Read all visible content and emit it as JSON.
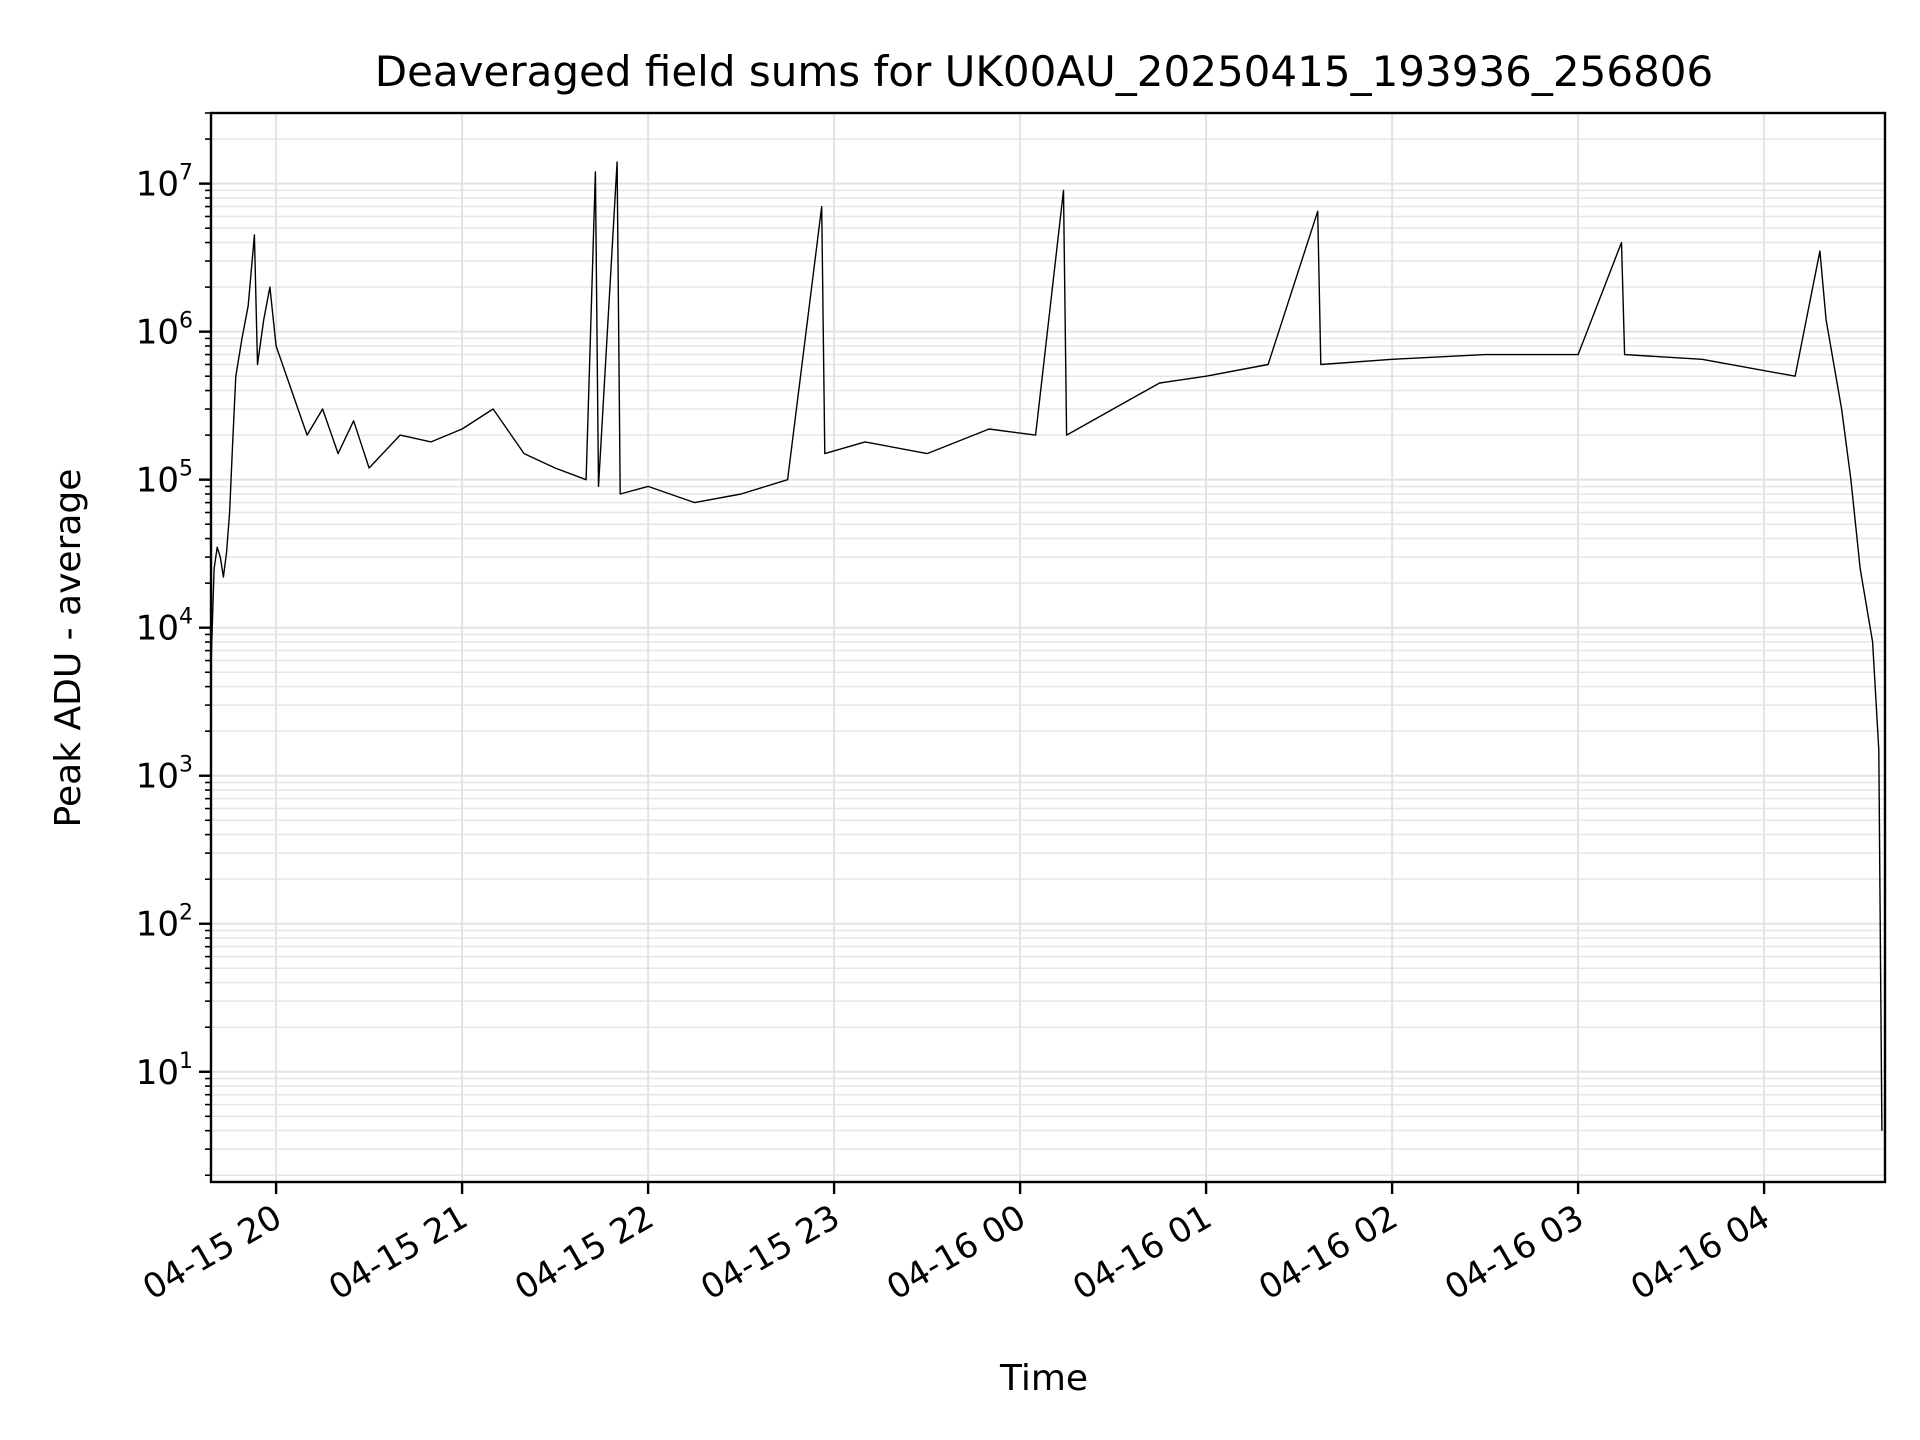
{
  "chart_data": {
    "type": "line",
    "title": "Deaveraged field sums for UK00AU_20250415_193936_256806",
    "xlabel": "Time",
    "ylabel": "Peak ADU - average",
    "yscale": "log",
    "ylim": [
      1.8,
      30000000
    ],
    "xlim": [
      "2025-04-15 19:39",
      "2025-04-16 04:39"
    ],
    "grid": true,
    "x_ticks": [
      {
        "label": "04-15 20",
        "t": "2025-04-15 20:00"
      },
      {
        "label": "04-15 21",
        "t": "2025-04-15 21:00"
      },
      {
        "label": "04-15 22",
        "t": "2025-04-15 22:00"
      },
      {
        "label": "04-15 23",
        "t": "2025-04-15 23:00"
      },
      {
        "label": "04-16 00",
        "t": "2025-04-16 00:00"
      },
      {
        "label": "04-16 01",
        "t": "2025-04-16 01:00"
      },
      {
        "label": "04-16 02",
        "t": "2025-04-16 02:00"
      },
      {
        "label": "04-16 03",
        "t": "2025-04-16 03:00"
      },
      {
        "label": "04-16 04",
        "t": "2025-04-16 04:00"
      }
    ],
    "y_ticks": [
      {
        "base": "10",
        "exp": "1",
        "value": 10
      },
      {
        "base": "10",
        "exp": "2",
        "value": 100
      },
      {
        "base": "10",
        "exp": "3",
        "value": 1000
      },
      {
        "base": "10",
        "exp": "4",
        "value": 10000
      },
      {
        "base": "10",
        "exp": "5",
        "value": 100000
      },
      {
        "base": "10",
        "exp": "6",
        "value": 1000000
      },
      {
        "base": "10",
        "exp": "7",
        "value": 10000000
      }
    ],
    "series": [
      {
        "color": "#000000",
        "points": [
          [
            "2025-04-15 19:39",
            5500
          ],
          [
            "2025-04-15 19:40",
            25000
          ],
          [
            "2025-04-15 19:41",
            35000
          ],
          [
            "2025-04-15 19:42",
            30000
          ],
          [
            "2025-04-15 19:43",
            22000
          ],
          [
            "2025-04-15 19:44",
            32000
          ],
          [
            "2025-04-15 19:45",
            60000
          ],
          [
            "2025-04-15 19:46",
            180000
          ],
          [
            "2025-04-15 19:47",
            500000
          ],
          [
            "2025-04-15 19:49",
            900000
          ],
          [
            "2025-04-15 19:51",
            1500000
          ],
          [
            "2025-04-15 19:53",
            4500000
          ],
          [
            "2025-04-15 19:54",
            600000
          ],
          [
            "2025-04-15 19:56",
            1200000
          ],
          [
            "2025-04-15 19:58",
            2000000
          ],
          [
            "2025-04-15 20:00",
            800000
          ],
          [
            "2025-04-15 20:05",
            400000
          ],
          [
            "2025-04-15 20:10",
            200000
          ],
          [
            "2025-04-15 20:15",
            300000
          ],
          [
            "2025-04-15 20:20",
            150000
          ],
          [
            "2025-04-15 20:25",
            250000
          ],
          [
            "2025-04-15 20:30",
            120000
          ],
          [
            "2025-04-15 20:40",
            200000
          ],
          [
            "2025-04-15 20:50",
            180000
          ],
          [
            "2025-04-15 21:00",
            220000
          ],
          [
            "2025-04-15 21:10",
            300000
          ],
          [
            "2025-04-15 21:20",
            150000
          ],
          [
            "2025-04-15 21:30",
            120000
          ],
          [
            "2025-04-15 21:40",
            100000
          ],
          [
            "2025-04-15 21:43",
            12000000
          ],
          [
            "2025-04-15 21:44",
            90000
          ],
          [
            "2025-04-15 21:50",
            14000000
          ],
          [
            "2025-04-15 21:51",
            80000
          ],
          [
            "2025-04-15 22:00",
            90000
          ],
          [
            "2025-04-15 22:15",
            70000
          ],
          [
            "2025-04-15 22:30",
            80000
          ],
          [
            "2025-04-15 22:45",
            100000
          ],
          [
            "2025-04-15 22:56",
            7000000
          ],
          [
            "2025-04-15 22:57",
            150000
          ],
          [
            "2025-04-15 23:10",
            180000
          ],
          [
            "2025-04-15 23:30",
            150000
          ],
          [
            "2025-04-15 23:50",
            220000
          ],
          [
            "2025-04-16 00:05",
            200000
          ],
          [
            "2025-04-16 00:14",
            9000000
          ],
          [
            "2025-04-16 00:15",
            200000
          ],
          [
            "2025-04-16 00:30",
            300000
          ],
          [
            "2025-04-16 00:45",
            450000
          ],
          [
            "2025-04-16 01:00",
            500000
          ],
          [
            "2025-04-16 01:20",
            600000
          ],
          [
            "2025-04-16 01:36",
            6500000
          ],
          [
            "2025-04-16 01:37",
            600000
          ],
          [
            "2025-04-16 02:00",
            650000
          ],
          [
            "2025-04-16 02:30",
            700000
          ],
          [
            "2025-04-16 03:00",
            700000
          ],
          [
            "2025-04-16 03:14",
            4000000
          ],
          [
            "2025-04-16 03:15",
            700000
          ],
          [
            "2025-04-16 03:40",
            650000
          ],
          [
            "2025-04-16 04:10",
            500000
          ],
          [
            "2025-04-16 04:18",
            3500000
          ],
          [
            "2025-04-16 04:20",
            1200000
          ],
          [
            "2025-04-16 04:25",
            300000
          ],
          [
            "2025-04-16 04:28",
            100000
          ],
          [
            "2025-04-16 04:31",
            25000
          ],
          [
            "2025-04-16 04:35",
            8000
          ],
          [
            "2025-04-16 04:37",
            1500
          ],
          [
            "2025-04-16 04:38",
            4
          ]
        ]
      }
    ]
  }
}
